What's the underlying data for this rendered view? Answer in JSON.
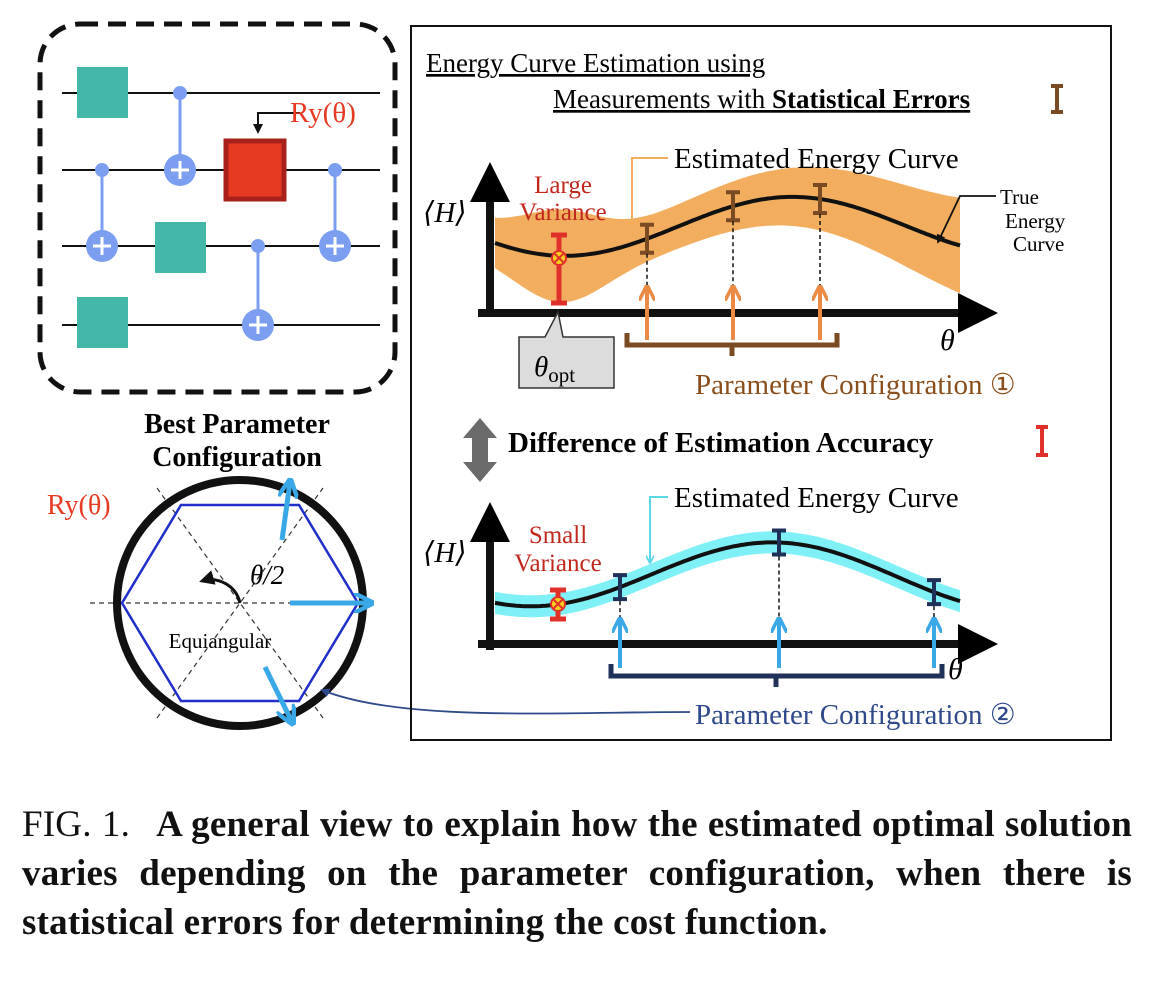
{
  "circuit": {
    "gate_label": "Ry(θ)"
  },
  "best_config": {
    "title_line1": "Best Parameter",
    "title_line2": "Configuration",
    "ry_label": "Ry(θ)",
    "angle_label": "θ/2",
    "equiangular_label": "Equiangular"
  },
  "panel": {
    "title_line1": "Energy Curve Estimation using",
    "title_line2_plain": "Measurements with ",
    "title_line2_bold": "Statistical Errors",
    "difference_label": "Difference of Estimation Accuracy"
  },
  "plot1": {
    "ylabel": "⟨H⟩",
    "xlabel": "θ",
    "variance_line1": "Large",
    "variance_line2": "Variance",
    "estimated_curve_label": "Estimated Energy Curve",
    "true_curve_line1": "True",
    "true_curve_line2": "Energy",
    "true_curve_line3": "Curve",
    "theta_opt_main": "θ",
    "theta_opt_sub": "opt",
    "config_label": "Parameter Configuration ①"
  },
  "plot2": {
    "ylabel": "⟨H⟩",
    "xlabel": "θ",
    "variance_line1": "Small",
    "variance_line2": "Variance",
    "estimated_curve_label": "Estimated Energy Curve",
    "config_label": "Parameter Configuration ②"
  },
  "caption": {
    "label": "FIG. 1.",
    "text": "A general view to explain how the estimated optimal solution varies depending on the parameter configuration, when there is statistical errors for determining the cost function."
  },
  "colors": {
    "gate_teal": "#43b8a9",
    "gate_red": "#e63a23",
    "qubit_blue": "#7b9ef0",
    "band_orange": "#f2ae5e",
    "band_cyan": "#80f0f7",
    "error_brown": "#7a4a22",
    "error_navy": "#1f3158",
    "error_red": "#e0302a",
    "arrow_orange": "#eb8a45",
    "arrow_blue": "#3aa8e6",
    "hexagon_blue": "#1f2fc8"
  }
}
